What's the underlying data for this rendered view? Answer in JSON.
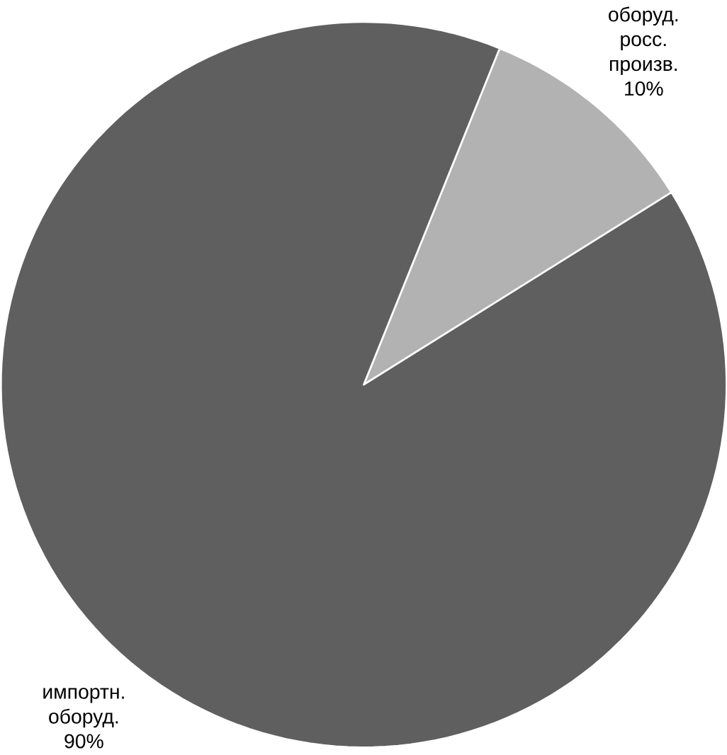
{
  "chart_data": {
    "type": "pie",
    "categories": [
      "оборуд. росс. произв.",
      "импортн. оборуд."
    ],
    "values": [
      10,
      90
    ],
    "colors": [
      "#b2b2b2",
      "#5f5f5f"
    ],
    "value_labels": [
      "10%",
      "90%"
    ]
  }
}
